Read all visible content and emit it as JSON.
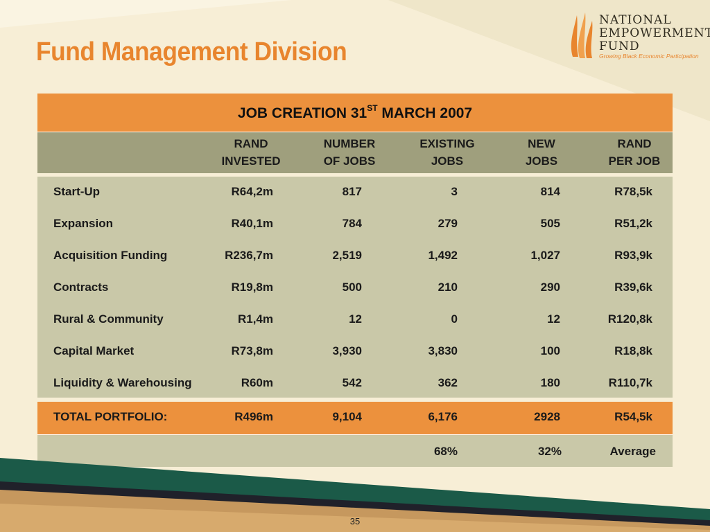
{
  "slide": {
    "title": "Fund Management Division",
    "page_number": "35"
  },
  "logo": {
    "line1": "NATIONAL",
    "line2": "EMPOWERMENT",
    "line3": "FUND",
    "tagline": "Growing Black Economic Participation"
  },
  "table": {
    "title_main": "JOB CREATION 31",
    "title_sup": "ST",
    "title_tail": " MARCH 2007",
    "headers": [
      {
        "l1": "RAND",
        "l2": "INVESTED"
      },
      {
        "l1": "NUMBER",
        "l2": "OF JOBS"
      },
      {
        "l1": "EXISTING",
        "l2": "JOBS"
      },
      {
        "l1": "NEW",
        "l2": "JOBS"
      },
      {
        "l1": "RAND",
        "l2": "PER JOB"
      }
    ],
    "rows": [
      {
        "label": "Start-Up",
        "invested": "R64,2m",
        "jobs": "817",
        "existing": "3",
        "new": "814",
        "per_job": "R78,5k"
      },
      {
        "label": "Expansion",
        "invested": "R40,1m",
        "jobs": "784",
        "existing": "279",
        "new": "505",
        "per_job": "R51,2k"
      },
      {
        "label": "Acquisition Funding",
        "invested": "R236,7m",
        "jobs": "2,519",
        "existing": "1,492",
        "new": "1,027",
        "per_job": "R93,9k"
      },
      {
        "label": "Contracts",
        "invested": "R19,8m",
        "jobs": "500",
        "existing": "210",
        "new": "290",
        "per_job": "R39,6k"
      },
      {
        "label": "Rural & Community",
        "invested": "R1,4m",
        "jobs": "12",
        "existing": "0",
        "new": "12",
        "per_job": "R120,8k"
      },
      {
        "label": "Capital Market",
        "invested": "R73,8m",
        "jobs": "3,930",
        "existing": "3,830",
        "new": "100",
        "per_job": "R18,8k"
      },
      {
        "label": "Liquidity & Warehousing",
        "invested": "R60m",
        "jobs": "542",
        "existing": "362",
        "new": "180",
        "per_job": "R110,7k"
      }
    ],
    "total": {
      "label": "TOTAL PORTFOLIO:",
      "invested": "R496m",
      "jobs": "9,104",
      "existing": "6,176",
      "new": "2928",
      "per_job": "R54,5k"
    },
    "percent": {
      "existing": "68%",
      "new": "32%",
      "per_job": "Average"
    }
  },
  "colors": {
    "accent_orange": "#ec913d",
    "title_orange": "#e8852e",
    "header_olive": "#9f9f7d",
    "body_khaki": "#c9c8a8",
    "band_green": "#1b5a48",
    "band_tan": "#c6985e"
  }
}
